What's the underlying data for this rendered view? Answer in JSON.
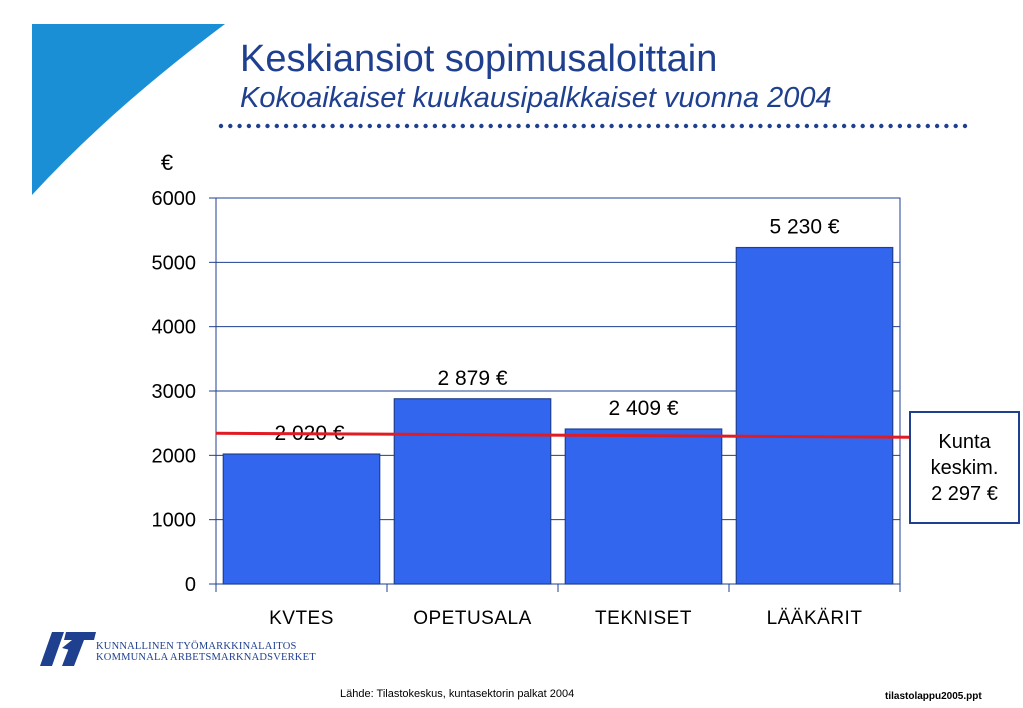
{
  "title": "Keskiansiot sopimusaloittain",
  "subtitle": "Kokoaikaiset kuukausipalkkaiset vuonna 2004",
  "colors": {
    "accent": "#1f3f8f",
    "bar": "#3366ee",
    "average_line": "#e01b24",
    "corner": "#1a8fd6"
  },
  "chart_data": {
    "type": "bar",
    "ylabel": "€",
    "xlabel": "",
    "ylim": [
      0,
      6000
    ],
    "yticks": [
      0,
      1000,
      2000,
      3000,
      4000,
      5000,
      6000
    ],
    "categories": [
      "KVTES",
      "OPETUSALA",
      "TEKNISET",
      "LÄÄKÄRIT"
    ],
    "values": [
      2020,
      2879,
      2409,
      5230
    ],
    "value_labels": [
      "2 020 €",
      "2 879 €",
      "2 409 €",
      "5 230 €"
    ],
    "reference_line": {
      "value": 2297,
      "label_lines": [
        "Kunta",
        "keskim.",
        "2 297 €"
      ]
    },
    "grid": true,
    "legend": "none"
  },
  "logo": {
    "icon": "kt-logo-icon",
    "line1": "KUNNALLINEN TYÖMARKKINALAITOS",
    "line2": "KOMMUNALA ARBETSMARKNADSVERKET"
  },
  "source": "Lähde: Tilastokeskus, kuntasektorin palkat 2004",
  "filename": "tilastolappu2005.ppt"
}
